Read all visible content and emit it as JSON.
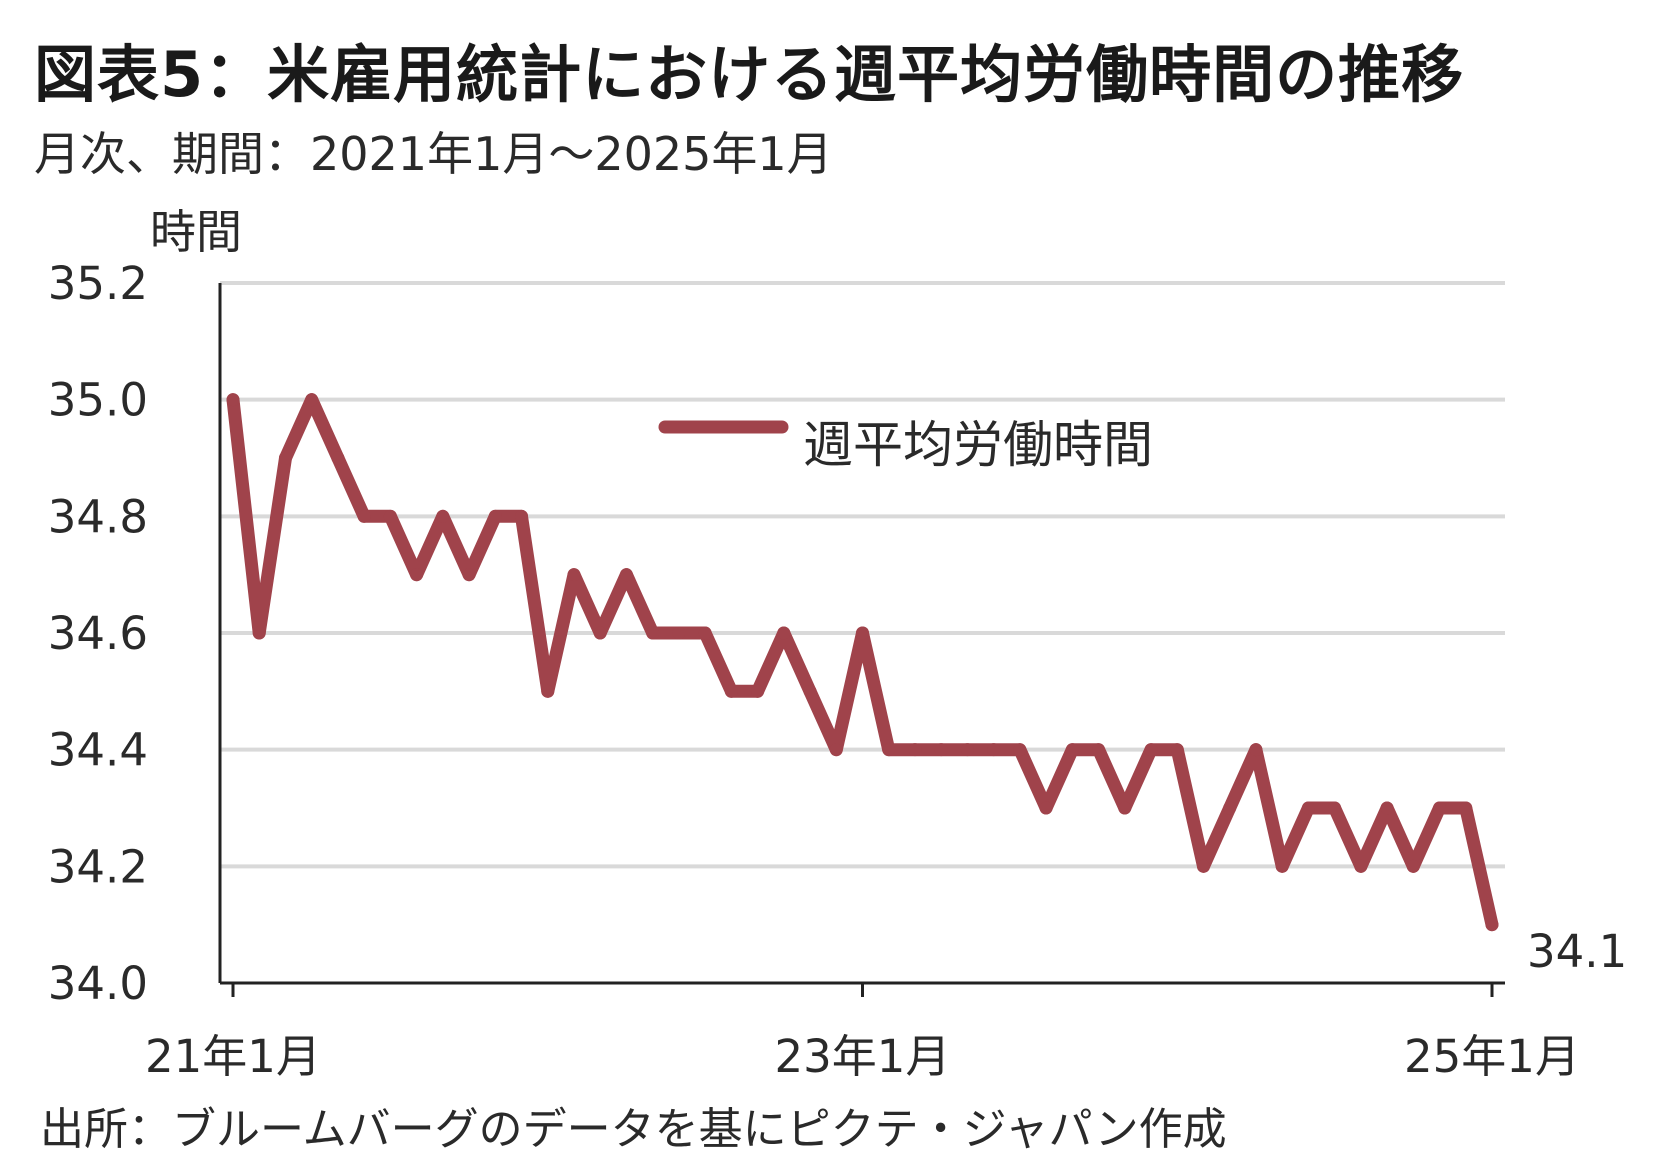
{
  "title": "図表5：米雇用統計における週平均労働時間の推移",
  "subtitle": "月次、期間：2021年1月～2025年1月",
  "y_unit": "時間",
  "source": "出所：ブルームバーグのデータを基にピクテ・ジャパン作成",
  "colors": {
    "series": "#a0434b",
    "grid": "#d9d9d9",
    "axis": "#222222"
  },
  "chart_data": {
    "type": "line",
    "ylabel": "時間",
    "ylim": [
      34.0,
      35.2
    ],
    "yticks": [
      "35.2",
      "35.0",
      "34.8",
      "34.6",
      "34.4",
      "34.2",
      "34.0"
    ],
    "xticks": [
      {
        "label": "21年1月",
        "x": "2021-01"
      },
      {
        "label": "23年1月",
        "x": "2023-01"
      },
      {
        "label": "25年1月",
        "x": "2025-01"
      }
    ],
    "grid": true,
    "legend_position": "top-center",
    "x": [
      "2021-01",
      "2021-02",
      "2021-03",
      "2021-04",
      "2021-05",
      "2021-06",
      "2021-07",
      "2021-08",
      "2021-09",
      "2021-10",
      "2021-11",
      "2021-12",
      "2022-01",
      "2022-02",
      "2022-03",
      "2022-04",
      "2022-05",
      "2022-06",
      "2022-07",
      "2022-08",
      "2022-09",
      "2022-10",
      "2022-11",
      "2022-12",
      "2023-01",
      "2023-02",
      "2023-03",
      "2023-04",
      "2023-05",
      "2023-06",
      "2023-07",
      "2023-08",
      "2023-09",
      "2023-10",
      "2023-11",
      "2023-12",
      "2024-01",
      "2024-02",
      "2024-03",
      "2024-04",
      "2024-05",
      "2024-06",
      "2024-07",
      "2024-08",
      "2024-09",
      "2024-10",
      "2024-11",
      "2024-12",
      "2025-01"
    ],
    "series": [
      {
        "name": "週平均労働時間",
        "values": [
          35.0,
          34.6,
          34.9,
          35.0,
          34.9,
          34.8,
          34.8,
          34.7,
          34.8,
          34.7,
          34.8,
          34.8,
          34.5,
          34.7,
          34.6,
          34.7,
          34.6,
          34.6,
          34.6,
          34.5,
          34.5,
          34.6,
          34.5,
          34.4,
          34.6,
          34.4,
          34.4,
          34.4,
          34.4,
          34.4,
          34.4,
          34.3,
          34.4,
          34.4,
          34.3,
          34.4,
          34.4,
          34.2,
          34.3,
          34.4,
          34.2,
          34.3,
          34.3,
          34.2,
          34.3,
          34.2,
          34.3,
          34.3,
          34.1
        ]
      }
    ],
    "end_label": "34.1"
  }
}
